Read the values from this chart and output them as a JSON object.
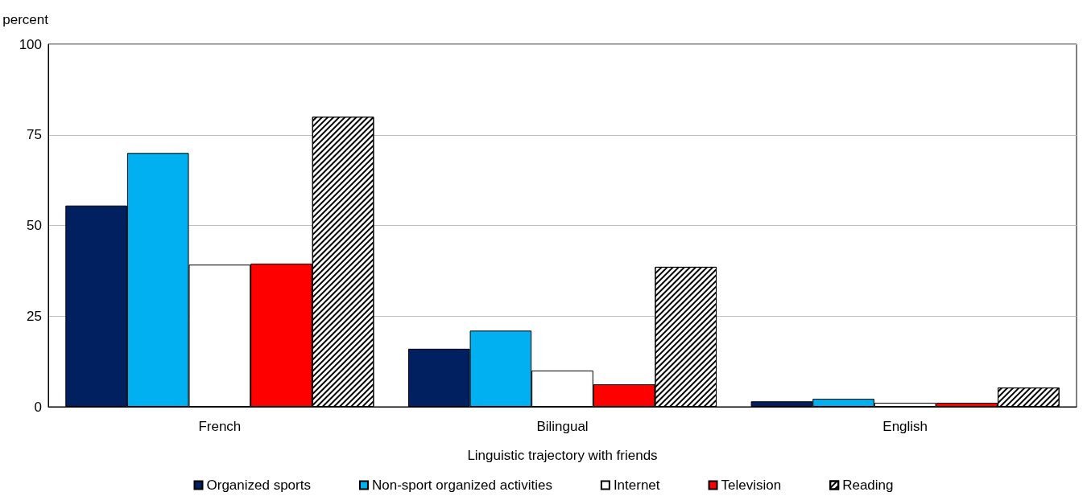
{
  "chart_data": {
    "type": "bar",
    "xlabel": "Linguistic trajectory with friends",
    "ylabel": "percent",
    "categories": [
      "French",
      "Bilingual",
      "English"
    ],
    "series": [
      {
        "name": "Organized sports",
        "color": "#002060",
        "values": [
          55.5,
          16,
          1.5
        ]
      },
      {
        "name": "Non-sport organized activities",
        "color": "#00b0f0",
        "values": [
          70,
          21,
          2.2
        ]
      },
      {
        "name": "Internet",
        "color": "#ffffff",
        "values": [
          39.2,
          10,
          1.1
        ]
      },
      {
        "name": "Television",
        "color": "#ff0000",
        "values": [
          39.5,
          6.2,
          1.1
        ]
      },
      {
        "name": "Reading",
        "color": "#000000",
        "values": [
          80,
          38.6,
          5.3
        ]
      }
    ],
    "ylim": [
      0,
      100
    ],
    "yticks": [
      0,
      25,
      50,
      75,
      100
    ],
    "grid": "y",
    "legend": "bottom"
  }
}
